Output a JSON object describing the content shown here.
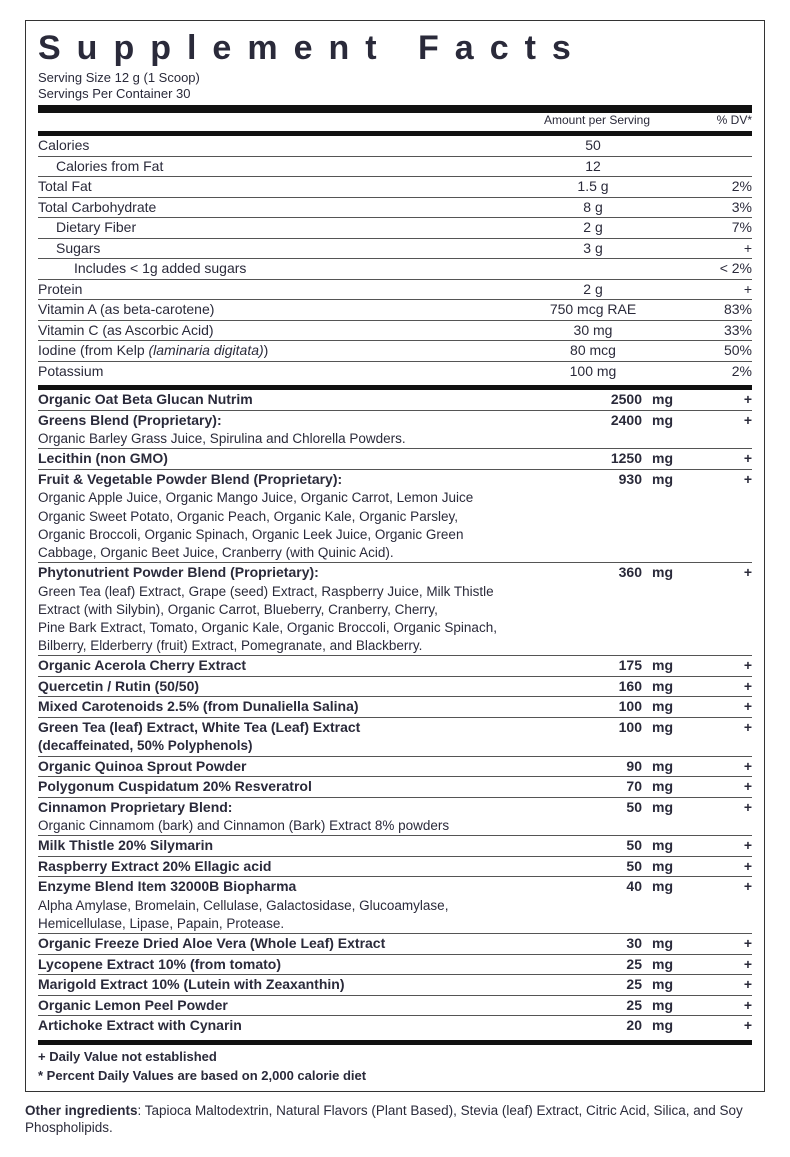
{
  "title": "Supplement Facts",
  "servingSize": "Serving Size 12 g (1 Scoop)",
  "servingsPer": "Servings Per Container 30",
  "headerAmount": "Amount per Serving",
  "headerDV": "% DV*",
  "nutrients": [
    {
      "name": "Calories",
      "amount": "50",
      "dv": ""
    },
    {
      "name": "Calories from Fat",
      "amount": "12",
      "dv": "",
      "indent": 1
    },
    {
      "name": "Total Fat",
      "amount": "1.5 g",
      "dv": "2%"
    },
    {
      "name": "Total Carbohydrate",
      "amount": "8 g",
      "dv": "3%"
    },
    {
      "name": "Dietary Fiber",
      "amount": "2 g",
      "dv": "7%",
      "indent": 1
    },
    {
      "name": "Sugars",
      "amount": "3 g",
      "dv": "+",
      "indent": 1
    },
    {
      "name": "Includes < 1g added sugars",
      "amount": "",
      "dv": "< 2%",
      "indent": 2
    },
    {
      "name": "Protein",
      "amount": "2 g",
      "dv": "+"
    },
    {
      "name": "Vitamin A (as beta-carotene)",
      "amount": "750 mcg RAE",
      "dv": "83%"
    },
    {
      "name": "Vitamin C (as Ascorbic Acid)",
      "amount": "30 mg",
      "dv": "33%"
    },
    {
      "name": "Iodine (from Kelp (laminaria digitata))",
      "amount": "80 mcg",
      "dv": "50%",
      "italicPart": "(laminaria digitata)"
    },
    {
      "name": "Potassium",
      "amount": "100 mg",
      "dv": "2%"
    }
  ],
  "ingredients": [
    {
      "name": "Organic Oat Beta Glucan Nutrim",
      "amount": "2500",
      "unit": "mg",
      "dv": "+",
      "bold": true,
      "noborder": true
    },
    {
      "name": "Greens Blend (Proprietary):",
      "amount": "2400",
      "unit": "mg",
      "dv": "+",
      "bold": true
    },
    {
      "sub": "Organic Barley Grass Juice, Spirulina and Chlorella Powders."
    },
    {
      "name": "Lecithin (non GMO)",
      "amount": "1250",
      "unit": "mg",
      "dv": "+",
      "bold": true
    },
    {
      "name": "Fruit & Vegetable Powder Blend (Proprietary):",
      "amount": "930",
      "unit": "mg",
      "dv": "+",
      "bold": true
    },
    {
      "sub": "Organic Apple Juice, Organic Mango Juice, Organic Carrot, Lemon Juice"
    },
    {
      "sub": "Organic Sweet Potato, Organic Peach, Organic Kale, Organic Parsley,"
    },
    {
      "sub": "Organic Broccoli, Organic Spinach, Organic Leek Juice, Organic Green"
    },
    {
      "sub": "Cabbage, Organic Beet Juice, Cranberry (with Quinic Acid)."
    },
    {
      "name": "Phytonutrient Powder Blend (Proprietary):",
      "amount": "360",
      "unit": "mg",
      "dv": "+",
      "bold": true
    },
    {
      "sub": "Green Tea (leaf) Extract, Grape (seed) Extract, Raspberry Juice, Milk Thistle"
    },
    {
      "sub": "Extract (with Silybin), Organic Carrot, Blueberry, Cranberry, Cherry,"
    },
    {
      "sub": "Pine Bark Extract, Tomato, Organic Kale, Organic Broccoli, Organic Spinach,"
    },
    {
      "sub": "Bilberry, Elderberry (fruit) Extract, Pomegranate, and Blackberry."
    },
    {
      "name": "Organic Acerola Cherry Extract",
      "amount": "175",
      "unit": "mg",
      "dv": "+",
      "bold": true
    },
    {
      "name": "Quercetin / Rutin (50/50)",
      "amount": "160",
      "unit": "mg",
      "dv": "+",
      "bold": true
    },
    {
      "name": "Mixed Carotenoids 2.5% (from Dunaliella Salina)",
      "amount": "100",
      "unit": "mg",
      "dv": "+",
      "bold": true
    },
    {
      "name": "Green Tea (leaf) Extract, White Tea (Leaf) Extract",
      "amount": "100",
      "unit": "mg",
      "dv": "+",
      "bold": true
    },
    {
      "sub": "(decaffeinated,  50% Polyphenols)",
      "bold": true
    },
    {
      "name": "Organic Quinoa Sprout Powder",
      "amount": "90",
      "unit": "mg",
      "dv": "+",
      "bold": true
    },
    {
      "name": "Polygonum Cuspidatum 20% Resveratrol",
      "amount": "70",
      "unit": "mg",
      "dv": "+",
      "bold": true
    },
    {
      "name": "Cinnamon Proprietary Blend:",
      "amount": "50",
      "unit": "mg",
      "dv": "+",
      "bold": true
    },
    {
      "sub": "Organic Cinnamom (bark) and Cinnamon (Bark) Extract 8% powders"
    },
    {
      "name": "Milk Thistle 20% Silymarin",
      "amount": "50",
      "unit": "mg",
      "dv": "+",
      "bold": true
    },
    {
      "name": "Raspberry Extract 20% Ellagic acid",
      "amount": "50",
      "unit": "mg",
      "dv": "+",
      "bold": true
    },
    {
      "name": "Enzyme Blend Item 32000B Biopharma",
      "amount": "40",
      "unit": "mg",
      "dv": "+",
      "bold": true
    },
    {
      "sub": "Alpha Amylase, Bromelain, Cellulase, Galactosidase,  Glucoamylase,"
    },
    {
      "sub": "Hemicellulase, Lipase, Papain, Protease."
    },
    {
      "name": "Organic Freeze Dried Aloe Vera  (Whole Leaf) Extract",
      "amount": "30",
      "unit": "mg",
      "dv": "+",
      "bold": true
    },
    {
      "name": "Lycopene Extract 10% (from tomato)",
      "amount": "25",
      "unit": "mg",
      "dv": "+",
      "bold": true
    },
    {
      "name": "Marigold Extract 10% (Lutein with Zeaxanthin)",
      "amount": "25",
      "unit": "mg",
      "dv": "+",
      "bold": true
    },
    {
      "name": "Organic Lemon Peel Powder",
      "amount": "25",
      "unit": "mg",
      "dv": "+",
      "bold": true
    },
    {
      "name": "Artichoke Extract with Cynarin",
      "amount": "20",
      "unit": "mg",
      "dv": "+",
      "bold": true
    }
  ],
  "foot1": "+ Daily Value not established",
  "foot2": "*  Percent Daily Values are based on 2,000 calorie diet",
  "otherLabel": "Other ingredients",
  "otherText": ":  Tapioca Maltodextrin, Natural Flavors (Plant Based), Stevia (leaf) Extract, Citric Acid, Silica, and Soy Phospholipids."
}
